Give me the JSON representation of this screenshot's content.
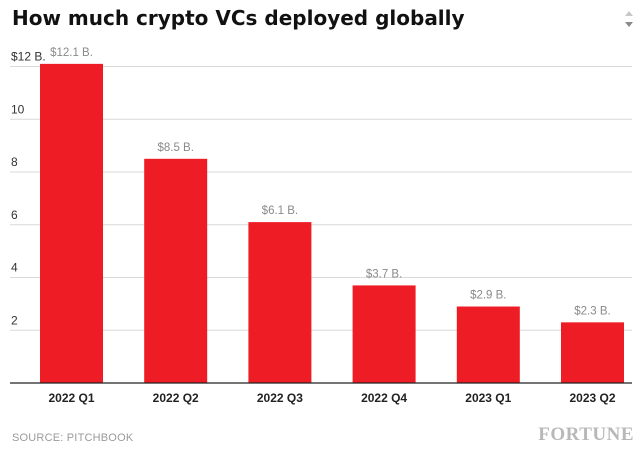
{
  "title": "How much crypto VCs deployed globally",
  "source": "SOURCE: PITCHBOOK",
  "brand": "FORTUNE",
  "colors": {
    "bar": "#ee1c25",
    "grid": "#d9d9d9",
    "axis": "#222222",
    "label": "#8a8a8a"
  },
  "chart_data": {
    "type": "bar",
    "categories": [
      "2022 Q1",
      "2022 Q2",
      "2022 Q3",
      "2022 Q4",
      "2023 Q1",
      "2023 Q2"
    ],
    "values": [
      12.1,
      8.5,
      6.1,
      3.7,
      2.9,
      2.3
    ],
    "data_labels": [
      "$12.1 B.",
      "$8.5 B.",
      "$6.1 B.",
      "$3.7 B.",
      "$2.9 B.",
      "$2.3 B."
    ],
    "title": "How much crypto VCs deployed globally",
    "xlabel": "",
    "ylabel": "",
    "ylim": [
      0,
      12
    ],
    "yticks": [
      2,
      4,
      6,
      8,
      10,
      12
    ],
    "ytick_labels": [
      "2",
      "4",
      "6",
      "8",
      "10",
      "$12 B."
    ],
    "grid": true
  }
}
